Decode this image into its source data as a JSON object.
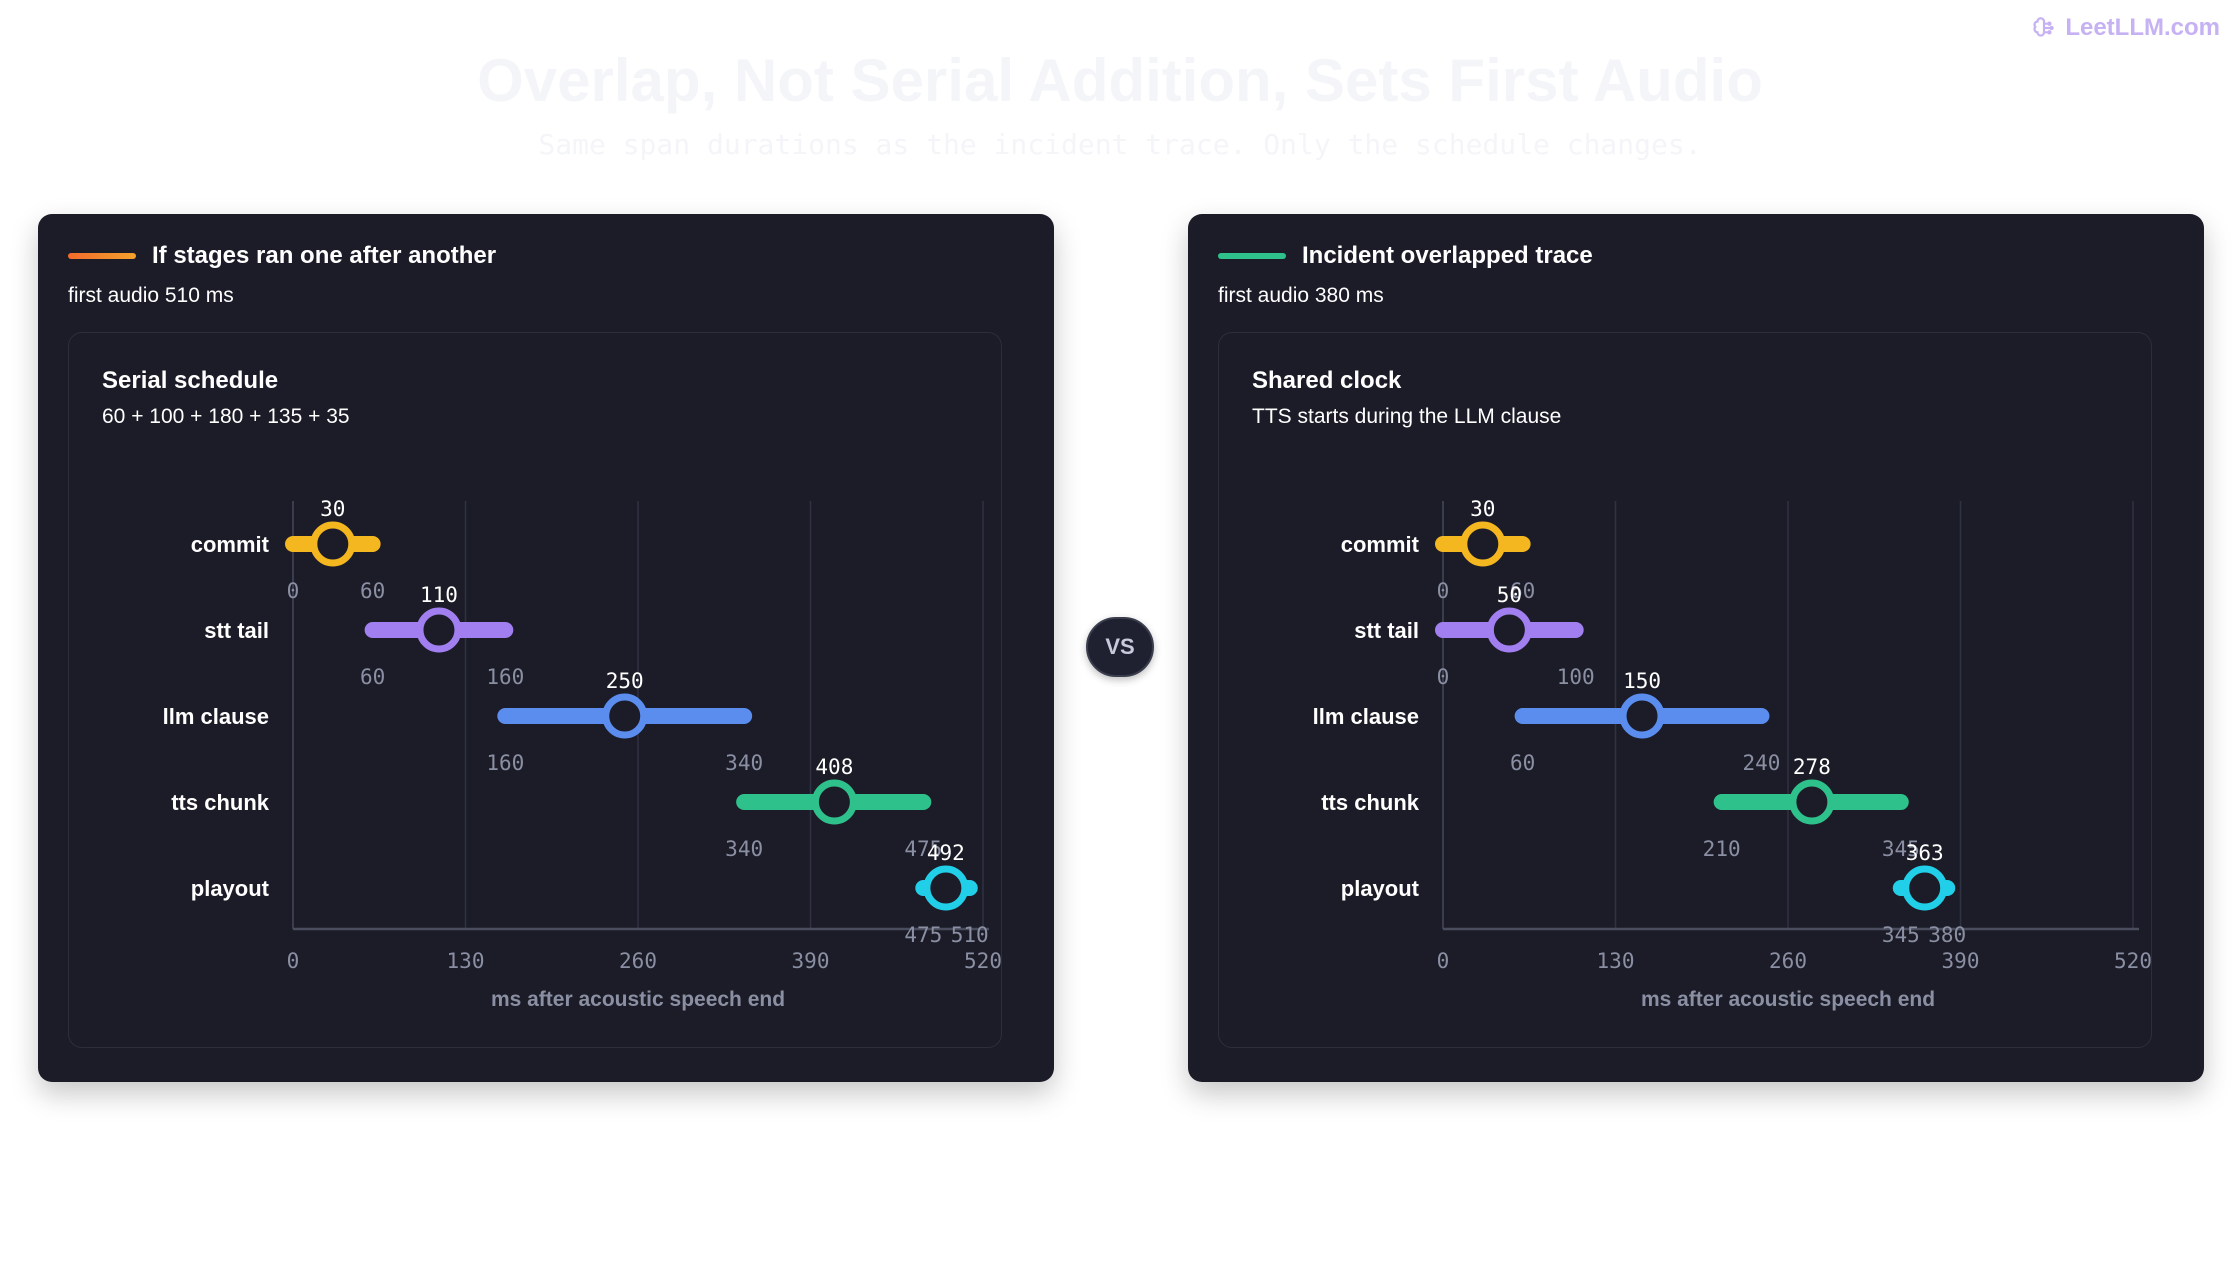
{
  "brand": {
    "name": "LeetLLM.com",
    "icon": "brain-icon",
    "color": "#c6b2f3"
  },
  "title": "Overlap, Not Serial Addition, Sets First Audio",
  "subtitle": "Same span durations as the incident trace. Only the schedule changes.",
  "vs_label": "VS",
  "colors": {
    "card_bg": "#1b1c27",
    "stages": {
      "commit": "#f4b71f",
      "stt tail": "#a27ff0",
      "llm clause": "#5b8def",
      "tts chunk": "#2fc18b",
      "playout": "#22cfe8"
    },
    "serial_accent": "#f36b2c",
    "overlap_accent": "#2fc18b"
  },
  "cards": [
    {
      "key": "serial",
      "accent": "#f36b2c",
      "title": "If stages ran one after another",
      "subtitle": "first audio 510 ms",
      "panel_title": "Serial schedule",
      "panel_subtitle": "60 + 100 + 180 + 135 + 35",
      "chart_data": {
        "type": "range",
        "xlabel": "ms after acoustic speech end",
        "xlim": [
          0,
          520
        ],
        "x_ticks": [
          0,
          130,
          260,
          390,
          520
        ],
        "grid": true,
        "series": [
          {
            "label": "commit",
            "start": 0,
            "end": 60,
            "mid": 30
          },
          {
            "label": "stt tail",
            "start": 60,
            "end": 160,
            "mid": 110
          },
          {
            "label": "llm clause",
            "start": 160,
            "end": 340,
            "mid": 250
          },
          {
            "label": "tts chunk",
            "start": 340,
            "end": 475,
            "mid": 408
          },
          {
            "label": "playout",
            "start": 475,
            "end": 510,
            "mid": 492
          }
        ]
      }
    },
    {
      "key": "overlap",
      "accent": "#2fc18b",
      "title": "Incident overlapped trace",
      "subtitle": "first audio 380 ms",
      "panel_title": "Shared clock",
      "panel_subtitle": "TTS starts during the LLM clause",
      "chart_data": {
        "type": "range",
        "xlabel": "ms after acoustic speech end",
        "xlim": [
          0,
          520
        ],
        "x_ticks": [
          0,
          130,
          260,
          390,
          520
        ],
        "grid": true,
        "series": [
          {
            "label": "commit",
            "start": 0,
            "end": 60,
            "mid": 30
          },
          {
            "label": "stt tail",
            "start": 0,
            "end": 100,
            "mid": 50
          },
          {
            "label": "llm clause",
            "start": 60,
            "end": 240,
            "mid": 150
          },
          {
            "label": "tts chunk",
            "start": 210,
            "end": 345,
            "mid": 278
          },
          {
            "label": "playout",
            "start": 345,
            "end": 380,
            "mid": 363
          }
        ]
      }
    }
  ]
}
